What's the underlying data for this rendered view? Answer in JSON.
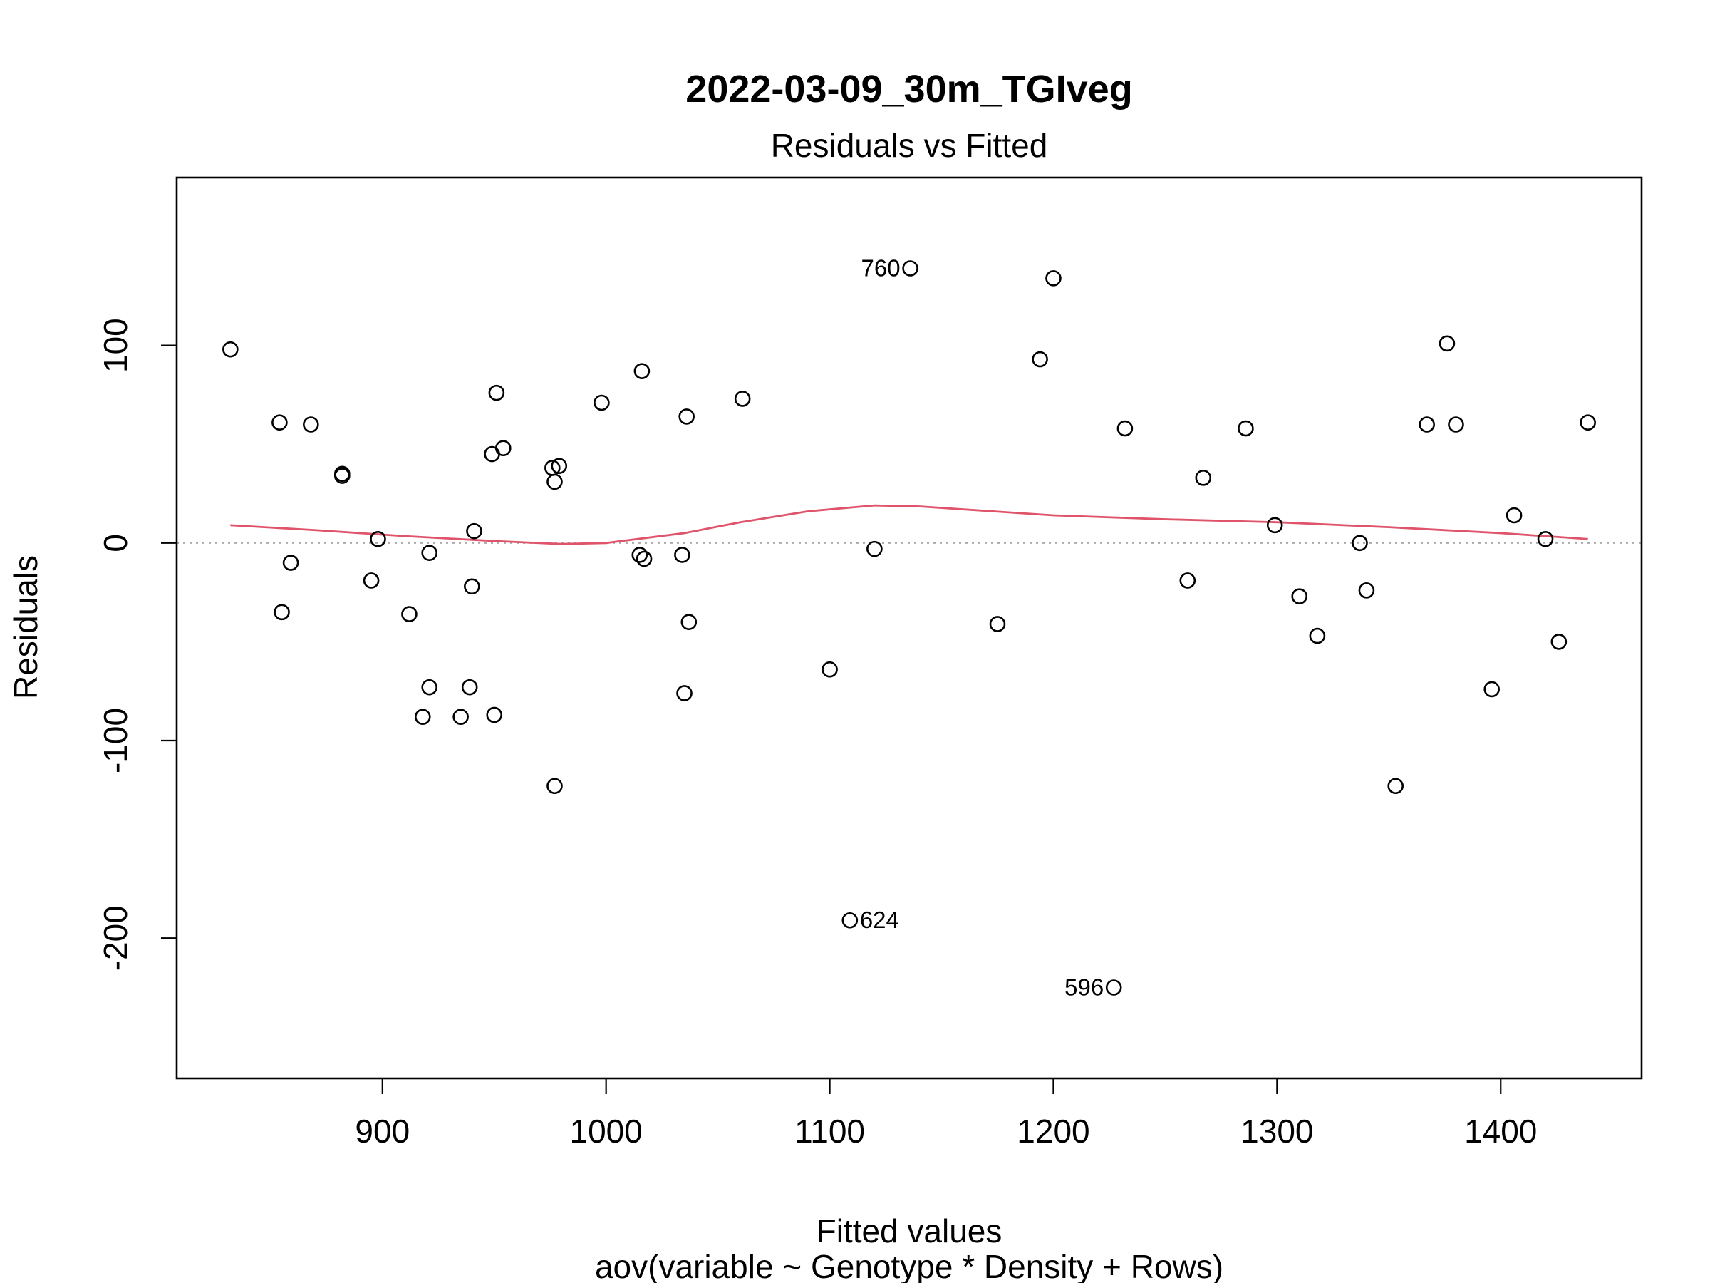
{
  "chart_data": {
    "type": "scatter",
    "title": "2022-03-09_30m_TGIveg",
    "subtitle": "Residuals vs Fitted",
    "xlabel": "Fitted values",
    "xlabel_sub": "aov(variable ~ Genotype * Density + Rows)",
    "ylabel": "Residuals",
    "xlim": [
      808,
      1463
    ],
    "ylim": [
      -271,
      185
    ],
    "x_ticks": [
      900,
      1000,
      1100,
      1200,
      1300,
      1400
    ],
    "y_ticks": [
      -200,
      -100,
      0,
      100
    ],
    "reference_line": {
      "y": 0,
      "style": "dotted",
      "color": "#a9a9a9"
    },
    "smooth_color": "#DF536B",
    "points": [
      {
        "x": 832,
        "y": 98
      },
      {
        "x": 854,
        "y": 61
      },
      {
        "x": 855,
        "y": -35
      },
      {
        "x": 859,
        "y": -10
      },
      {
        "x": 868,
        "y": 60
      },
      {
        "x": 882,
        "y": 35
      },
      {
        "x": 882,
        "y": 34
      },
      {
        "x": 895,
        "y": -19
      },
      {
        "x": 898,
        "y": 2
      },
      {
        "x": 912,
        "y": -36
      },
      {
        "x": 918,
        "y": -88
      },
      {
        "x": 921,
        "y": -5
      },
      {
        "x": 921,
        "y": -73
      },
      {
        "x": 935,
        "y": -88
      },
      {
        "x": 939,
        "y": -73
      },
      {
        "x": 940,
        "y": -22
      },
      {
        "x": 941,
        "y": 6
      },
      {
        "x": 949,
        "y": 45
      },
      {
        "x": 950,
        "y": -87
      },
      {
        "x": 951,
        "y": 76
      },
      {
        "x": 954,
        "y": 48
      },
      {
        "x": 976,
        "y": 38
      },
      {
        "x": 977,
        "y": -123
      },
      {
        "x": 977,
        "y": 31
      },
      {
        "x": 979,
        "y": 39
      },
      {
        "x": 998,
        "y": 71
      },
      {
        "x": 1015,
        "y": -6
      },
      {
        "x": 1016,
        "y": 87
      },
      {
        "x": 1017,
        "y": -8
      },
      {
        "x": 1034,
        "y": -6
      },
      {
        "x": 1035,
        "y": -76
      },
      {
        "x": 1036,
        "y": 64
      },
      {
        "x": 1037,
        "y": -40
      },
      {
        "x": 1061,
        "y": 73
      },
      {
        "x": 1100,
        "y": -64
      },
      {
        "x": 1109,
        "y": -191,
        "label": "624",
        "label_side": "right"
      },
      {
        "x": 1120,
        "y": -3
      },
      {
        "x": 1136,
        "y": 139,
        "label": "760",
        "label_side": "left"
      },
      {
        "x": 1175,
        "y": -41
      },
      {
        "x": 1194,
        "y": 93
      },
      {
        "x": 1200,
        "y": 134
      },
      {
        "x": 1227,
        "y": -225,
        "label": "596",
        "label_side": "left"
      },
      {
        "x": 1232,
        "y": 58
      },
      {
        "x": 1260,
        "y": -19
      },
      {
        "x": 1267,
        "y": 33
      },
      {
        "x": 1286,
        "y": 58
      },
      {
        "x": 1299,
        "y": 9
      },
      {
        "x": 1310,
        "y": -27
      },
      {
        "x": 1318,
        "y": -47
      },
      {
        "x": 1337,
        "y": 0
      },
      {
        "x": 1340,
        "y": -24
      },
      {
        "x": 1353,
        "y": -123
      },
      {
        "x": 1367,
        "y": 60
      },
      {
        "x": 1376,
        "y": 101
      },
      {
        "x": 1380,
        "y": 60
      },
      {
        "x": 1396,
        "y": -74
      },
      {
        "x": 1406,
        "y": 14
      },
      {
        "x": 1420,
        "y": 2
      },
      {
        "x": 1426,
        "y": -50
      },
      {
        "x": 1439,
        "y": 61
      }
    ],
    "smooth": [
      {
        "x": 832,
        "y": 9
      },
      {
        "x": 870,
        "y": 6.5
      },
      {
        "x": 910,
        "y": 3.5
      },
      {
        "x": 950,
        "y": 1
      },
      {
        "x": 980,
        "y": -0.5
      },
      {
        "x": 1000,
        "y": 0
      },
      {
        "x": 1035,
        "y": 5
      },
      {
        "x": 1060,
        "y": 10.5
      },
      {
        "x": 1090,
        "y": 16
      },
      {
        "x": 1120,
        "y": 19
      },
      {
        "x": 1140,
        "y": 18.5
      },
      {
        "x": 1180,
        "y": 15.5
      },
      {
        "x": 1200,
        "y": 14
      },
      {
        "x": 1250,
        "y": 12
      },
      {
        "x": 1300,
        "y": 10.5
      },
      {
        "x": 1350,
        "y": 8
      },
      {
        "x": 1400,
        "y": 5
      },
      {
        "x": 1439,
        "y": 2
      }
    ]
  }
}
